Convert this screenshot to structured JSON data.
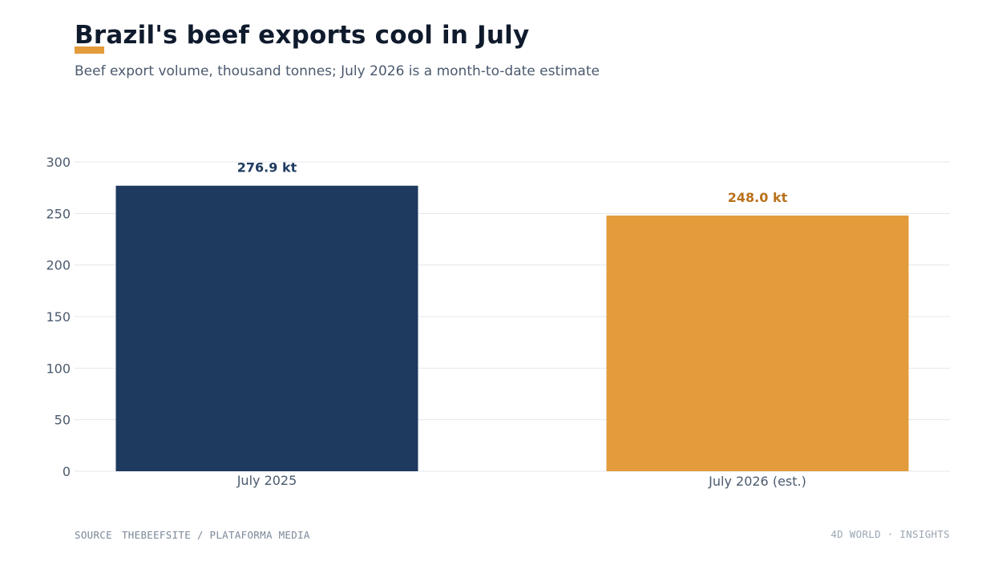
{
  "header": {
    "title": "Brazil's beef exports cool in July",
    "subtitle": "Beef export volume, thousand tonnes; July 2026 is a month-to-date estimate"
  },
  "footer": {
    "source_label": "SOURCE",
    "source_text": "THEBEEFSITE / PLATAFORMA MEDIA",
    "brand": "4D WORLD · INSIGHTS"
  },
  "colors": {
    "accent": "#e39b3c",
    "navy": "#1e3a5f",
    "orange_label": "#b9721b",
    "navy_label": "#1e3a5f",
    "grid": "#e3e7ec",
    "axis_text": "#4b5a6e"
  },
  "chart_data": {
    "type": "bar",
    "categories": [
      "July 2025",
      "July 2026 (est.)"
    ],
    "values": [
      276.9,
      248.0
    ],
    "data_labels": [
      "276.9 kt",
      "248.0 kt"
    ],
    "bar_colors": [
      "#1e3a5f",
      "#e39b3c"
    ],
    "label_colors": [
      "#1e3a5f",
      "#b9721b"
    ],
    "yticks": [
      "0",
      "50",
      "100",
      "150",
      "200",
      "250",
      "300"
    ],
    "ylim": [
      0,
      300
    ],
    "grid": true
  }
}
